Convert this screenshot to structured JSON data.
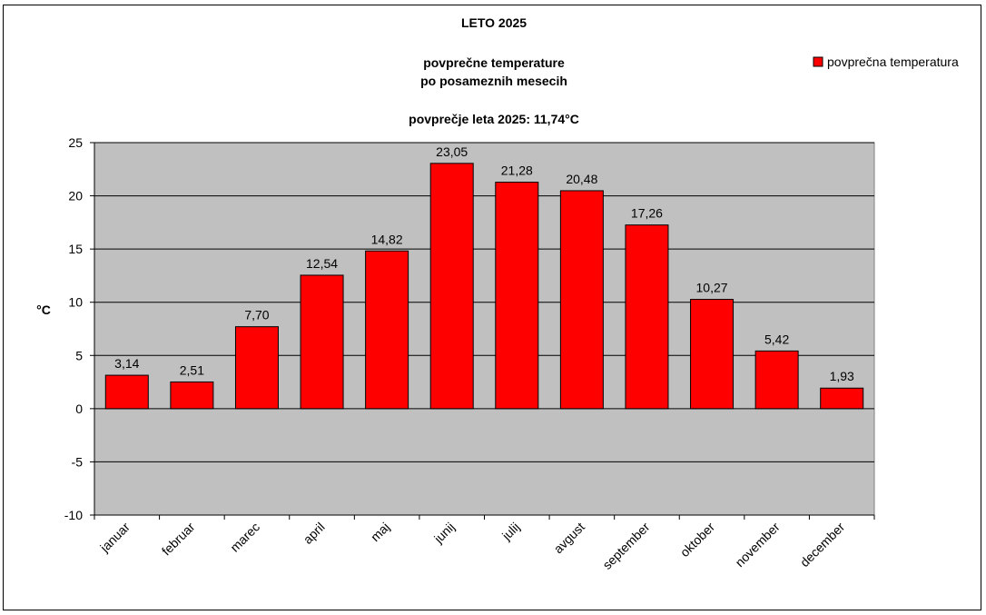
{
  "chart_data": {
    "type": "bar",
    "title": "LETO 2025",
    "subtitle": [
      "povprečne temperature",
      "po posameznih mesecih"
    ],
    "annotation": "povprečje leta 2025: 11,74°C",
    "xlabel": "",
    "ylabel": "°C",
    "ylim": [
      -10,
      25
    ],
    "yticks": [
      -10,
      -5,
      0,
      5,
      10,
      15,
      20,
      25
    ],
    "ytick_labels": [
      "-10",
      "-5",
      "0",
      "5",
      "10",
      "15",
      "20",
      "25"
    ],
    "grid": true,
    "legend_position": "top-right",
    "categories": [
      "januar",
      "februar",
      "marec",
      "april",
      "maj",
      "junij",
      "julij",
      "avgust",
      "september",
      "oktober",
      "november",
      "december"
    ],
    "series": [
      {
        "name": "povprečna temperatura",
        "color": "#ff0000",
        "values": [
          3.14,
          2.51,
          7.7,
          12.54,
          14.82,
          23.05,
          21.28,
          20.48,
          17.26,
          10.27,
          5.42,
          1.93
        ],
        "value_labels": [
          "3,14",
          "2,51",
          "7,70",
          "12,54",
          "14,82",
          "23,05",
          "21,28",
          "20,48",
          "17,26",
          "10,27",
          "5,42",
          "1,93"
        ]
      }
    ],
    "plot_background": "#c0c0c0"
  }
}
